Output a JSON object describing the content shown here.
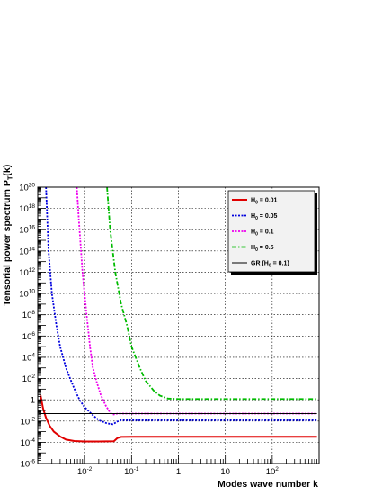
{
  "chart_data": {
    "type": "line",
    "xlabel": "Modes wave number k",
    "ylabel_main": "Tensorial power spectrum P",
    "ylabel_sub": "T",
    "ylabel_tail": "(k)",
    "x_scale": "log",
    "y_scale": "log",
    "xlim": [
      0.001,
      1000
    ],
    "ylim": [
      1e-06,
      1e+20
    ],
    "grid": true,
    "legend_position": "top-right",
    "x_ticks": [
      {
        "value": 0.01,
        "base": "10",
        "exp": "-2"
      },
      {
        "value": 0.1,
        "base": "10",
        "exp": "-1"
      },
      {
        "value": 1,
        "base": "1",
        "exp": ""
      },
      {
        "value": 10,
        "base": "10",
        "exp": ""
      },
      {
        "value": 100,
        "base": "10",
        "exp": "2"
      }
    ],
    "y_ticks": [
      {
        "value": 1e+20,
        "base": "10",
        "exp": "20"
      },
      {
        "value": 1e+18,
        "base": "10",
        "exp": "18"
      },
      {
        "value": 1e+16,
        "base": "10",
        "exp": "16"
      },
      {
        "value": 100000000000000.0,
        "base": "10",
        "exp": "14"
      },
      {
        "value": 1000000000000.0,
        "base": "10",
        "exp": "12"
      },
      {
        "value": 10000000000.0,
        "base": "10",
        "exp": "10"
      },
      {
        "value": 100000000.0,
        "base": "10",
        "exp": "8"
      },
      {
        "value": 1000000.0,
        "base": "10",
        "exp": "6"
      },
      {
        "value": 10000.0,
        "base": "10",
        "exp": "4"
      },
      {
        "value": 100.0,
        "base": "10",
        "exp": "2"
      },
      {
        "value": 1,
        "base": "1",
        "exp": ""
      },
      {
        "value": 0.01,
        "base": "10",
        "exp": "-2"
      },
      {
        "value": 0.0001,
        "base": "10",
        "exp": "-4"
      },
      {
        "value": 1e-06,
        "base": "10",
        "exp": "-6"
      }
    ],
    "series": [
      {
        "name": "H",
        "name_sub": "0",
        "name_tail": " = 0.01",
        "color": "#e00000",
        "dash": "solid",
        "points": [
          [
            0.00115,
            2.5
          ],
          [
            0.0013,
            0.15
          ],
          [
            0.0015,
            0.02
          ],
          [
            0.0018,
            0.0035
          ],
          [
            0.0022,
            0.001
          ],
          [
            0.003,
            0.00035
          ],
          [
            0.004,
            0.00018
          ],
          [
            0.006,
            0.00013
          ],
          [
            0.01,
            0.00012
          ],
          [
            0.02,
            0.00012
          ],
          [
            0.042,
            0.000125
          ],
          [
            0.05,
            0.00025
          ],
          [
            0.06,
            0.00032
          ],
          [
            0.1,
            0.00033
          ],
          [
            1,
            0.00033
          ],
          [
            10,
            0.00033
          ],
          [
            100,
            0.00033
          ],
          [
            900,
            0.00033
          ]
        ]
      },
      {
        "name": "H",
        "name_sub": "0",
        "name_tail": " = 0.05",
        "color": "#0000dd",
        "dash": "dotted",
        "points": [
          [
            0.0015,
            1e+20
          ],
          [
            0.0017,
            100000000000000.0
          ],
          [
            0.002,
            10000000000.0
          ],
          [
            0.0025,
            10000000.0
          ],
          [
            0.003,
            100000.0
          ],
          [
            0.004,
            1000.0
          ],
          [
            0.005,
            80
          ],
          [
            0.0065,
            5
          ],
          [
            0.008,
            0.8
          ],
          [
            0.01,
            0.2
          ],
          [
            0.015,
            0.035
          ],
          [
            0.02,
            0.012
          ],
          [
            0.03,
            0.006
          ],
          [
            0.04,
            0.005
          ],
          [
            0.05,
            0.009
          ],
          [
            0.06,
            0.012
          ],
          [
            0.1,
            0.012
          ],
          [
            1,
            0.012
          ],
          [
            10,
            0.012
          ],
          [
            100,
            0.012
          ],
          [
            900,
            0.012
          ]
        ]
      },
      {
        "name": "H",
        "name_sub": "0",
        "name_tail": " = 0.1",
        "color": "#ee00ee",
        "dash": "dotted",
        "points": [
          [
            0.0068,
            1e+20
          ],
          [
            0.0075,
            1e+17
          ],
          [
            0.009,
            1000000000000.0
          ],
          [
            0.011,
            100000000.0
          ],
          [
            0.013,
            100000.0
          ],
          [
            0.015,
            1000.0
          ],
          [
            0.018,
            50
          ],
          [
            0.022,
            3
          ],
          [
            0.028,
            0.3
          ],
          [
            0.035,
            0.06
          ],
          [
            0.04,
            0.04
          ],
          [
            0.05,
            0.05
          ],
          [
            0.1,
            0.05
          ],
          [
            1,
            0.05
          ],
          [
            10,
            0.05
          ],
          [
            100,
            0.05
          ],
          [
            900,
            0.05
          ]
        ]
      },
      {
        "name": "H",
        "name_sub": "0",
        "name_tail": " = 0.5",
        "color": "#00bb00",
        "dash": "dashdot",
        "points": [
          [
            0.03,
            1e+20
          ],
          [
            0.035,
            1e+16
          ],
          [
            0.045,
            1000000000000.0
          ],
          [
            0.06,
            1000000000.0
          ],
          [
            0.08,
            10000000.0
          ],
          [
            0.1,
            100000.0
          ],
          [
            0.15,
            1000.0
          ],
          [
            0.2,
            60
          ],
          [
            0.3,
            7
          ],
          [
            0.4,
            2.5
          ],
          [
            0.6,
            1.3
          ],
          [
            1,
            1.2
          ],
          [
            10,
            1.2
          ],
          [
            100,
            1.2
          ],
          [
            900,
            1.2
          ]
        ]
      },
      {
        "name": "GR (H",
        "name_sub": "0",
        "name_tail": " = 0.1)",
        "color": "#000000",
        "dash": "solid",
        "points": [
          [
            0.00105,
            0.05
          ],
          [
            900,
            0.05
          ]
        ]
      }
    ]
  }
}
